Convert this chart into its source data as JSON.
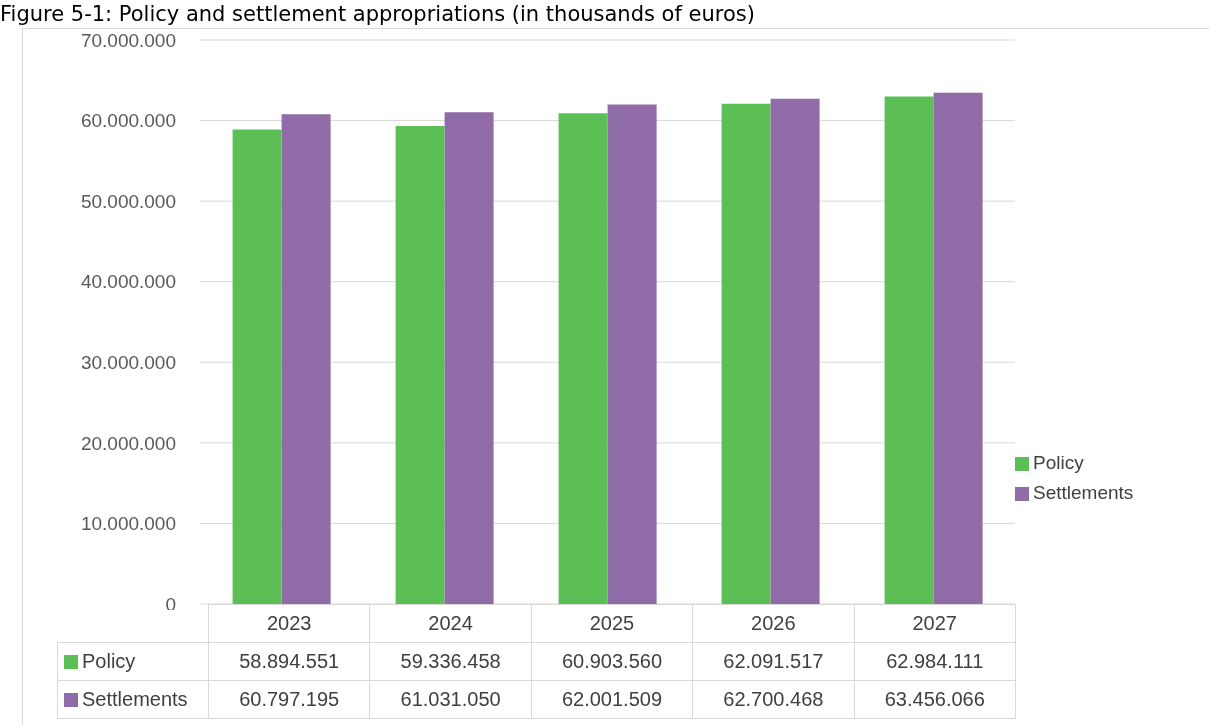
{
  "chart_data": {
    "type": "bar",
    "title": "Figure 5-1: Policy and settlement appropriations (in thousands of euros)",
    "categories": [
      "2023",
      "2024",
      "2025",
      "2026",
      "2027"
    ],
    "series": [
      {
        "name": "Policy",
        "color": "#5cbf55",
        "values": [
          58894551,
          59336458,
          60903560,
          62091517,
          62984111
        ],
        "value_labels": [
          "58.894.551",
          "59.336.458",
          "60.903.560",
          "62.091.517",
          "62.984.111"
        ]
      },
      {
        "name": "Settlements",
        "color": "#8f6ba8",
        "values": [
          60797195,
          61031050,
          62001509,
          62700468,
          63456066
        ],
        "value_labels": [
          "60.797.195",
          "61.031.050",
          "62.001.509",
          "62.700.468",
          "63.456.066"
        ]
      }
    ],
    "ylim": [
      0,
      70000000
    ],
    "yticks": [
      0,
      {
        "value": 10000000,
        "label": "10.000.000"
      },
      {
        "value": 20000000,
        "label": "20.000.000"
      },
      {
        "value": 30000000,
        "label": "30.000.000"
      },
      {
        "value": 40000000,
        "label": "40.000.000"
      },
      {
        "value": 50000000,
        "label": "50.000.000"
      },
      {
        "value": 60000000,
        "label": "60.000.000"
      },
      {
        "value": 70000000,
        "label": "70.000.000"
      }
    ],
    "grid": "y",
    "legend": "right"
  }
}
